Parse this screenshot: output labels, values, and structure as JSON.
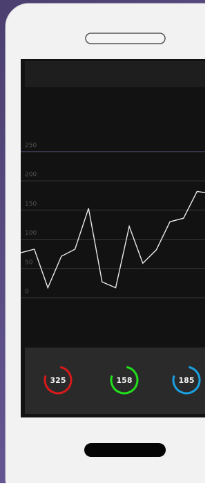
{
  "chart_data": {
    "type": "line",
    "values": [
      77,
      83,
      17,
      71,
      83,
      153,
      27,
      17,
      122,
      59,
      82,
      130,
      136,
      182,
      178
    ],
    "color": "#e8e8e8",
    "ylim": [
      0,
      250
    ],
    "yticks": [
      0,
      50,
      100,
      150,
      200,
      250
    ],
    "grid": true
  },
  "gauges": [
    {
      "value": 325,
      "color": "#d81a1a"
    },
    {
      "value": 158,
      "color": "#22e01c"
    },
    {
      "value": 185,
      "color": "#1aa0e0"
    }
  ]
}
